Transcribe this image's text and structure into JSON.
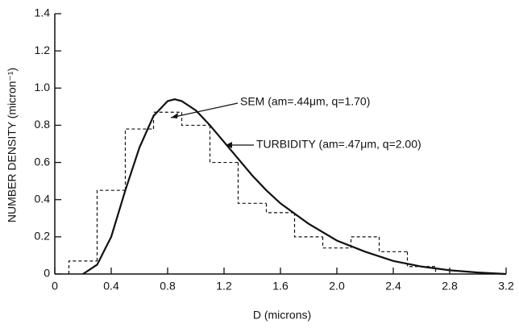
{
  "chart_data": {
    "type": "histogram",
    "xlabel": "D (microns)",
    "ylabel": "NUMBER DENSITY (micron⁻¹)",
    "bins": [
      0.1,
      0.3,
      0.5,
      0.7,
      0.9,
      1.1,
      1.3,
      1.5,
      1.7,
      1.9,
      2.1,
      2.3,
      2.5,
      2.7
    ],
    "values": [
      0.07,
      0.45,
      0.78,
      0.87,
      0.8,
      0.6,
      0.38,
      0.33,
      0.2,
      0.14,
      0.2,
      0.12,
      0.04
    ],
    "line": {
      "x": [
        0.2,
        0.3,
        0.4,
        0.5,
        0.6,
        0.7,
        0.8,
        0.85,
        0.9,
        1.0,
        1.1,
        1.2,
        1.3,
        1.4,
        1.5,
        1.6,
        1.8,
        2.0,
        2.2,
        2.4,
        2.6,
        2.8,
        3.0,
        3.2
      ],
      "values": [
        0,
        0.05,
        0.2,
        0.45,
        0.68,
        0.85,
        0.93,
        0.94,
        0.93,
        0.88,
        0.8,
        0.71,
        0.62,
        0.53,
        0.45,
        0.38,
        0.27,
        0.18,
        0.12,
        0.07,
        0.04,
        0.02,
        0.008,
        0
      ]
    },
    "annotations": [
      "SEM (am=.44μm, q=1.70)",
      "TURBIDITY (am=.47μm, q=2.00)"
    ],
    "xlim": [
      0,
      3.2
    ],
    "xticks": [
      0,
      0.4,
      0.8,
      1.2,
      1.6,
      {
        "value": 2,
        "label": "2.0"
      },
      2.4,
      2.8,
      3.2
    ],
    "ylim": [
      0,
      1.4
    ],
    "yticks": [
      0,
      0.2,
      0.4,
      0.6,
      0.8,
      {
        "value": 1,
        "label": "1.0"
      },
      1.2,
      1.4
    ],
    "color": "#111111"
  }
}
